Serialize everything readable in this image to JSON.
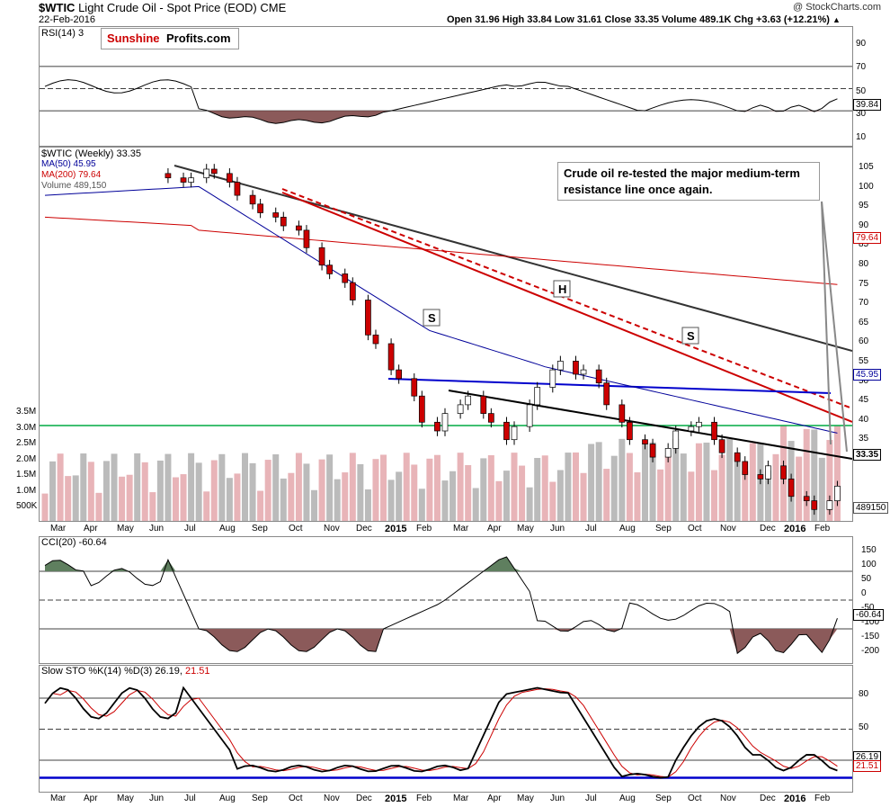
{
  "header": {
    "symbol": "$WTIC",
    "description": "Light Crude Oil - Spot Price (EOD)",
    "exchange": "CME",
    "date": "22-Feb-2016",
    "watermark": "@ StockCharts.com",
    "ohlc": "Open 31.96  High 33.84  Low 31.61  Close 33.35  Volume 489.1K  Chg +3.63 (+12.21%)",
    "chg_arrow": "▲"
  },
  "logo": {
    "part1": "Sunshine",
    "part2": "Profits.com",
    "color1": "#cc0000",
    "color2": "#000000"
  },
  "annotation": {
    "line1": "Crude oil re-tested the major medium-term",
    "line2": "resistance line once again."
  },
  "rsi": {
    "title": "RSI(14) 3",
    "value_label": "39.84",
    "axis_labels": [
      "90",
      "70",
      "50",
      "30",
      "10"
    ]
  },
  "price": {
    "legend": {
      "title": "$WTIC (Weekly) 33.35",
      "ma50": "MA(50) 45.95",
      "ma200": "MA(200) 79.64",
      "volume": "Volume 489,150"
    },
    "axis_labels": [
      "105",
      "100",
      "95",
      "90",
      "85",
      "80",
      "75",
      "70",
      "65",
      "60",
      "55",
      "50",
      "45",
      "40",
      "35",
      "30"
    ],
    "volume_axis_labels": [
      "3.5M",
      "3.0M",
      "2.5M",
      "2.0M",
      "1.5M",
      "1.0M",
      "500K"
    ],
    "last_label": "33.35",
    "ma50_label": "45.95",
    "ma200_label": "79.64",
    "volume_label": "489150",
    "pattern_labels": [
      "S",
      "H",
      "S"
    ],
    "colors": {
      "up": "#ffffff",
      "down": "#cc0000",
      "ma50": "#000099",
      "ma200": "#cc0000",
      "resistance": "#cc0000",
      "neckline": "#0000cc",
      "support": "#000000",
      "long_trend": "#333333",
      "level": "#00aa44"
    }
  },
  "cci": {
    "title": "CCI(20) -60.64",
    "value_label": "-60.64",
    "axis_labels": [
      "150",
      "100",
      "50",
      "0",
      "-50",
      "-100",
      "-150",
      "-200"
    ]
  },
  "sto": {
    "title": "Slow STO %K(14) %D(3) 26.19,",
    "d_value": "21.51",
    "k_label": "26.19",
    "d_label": "21.51",
    "axis_labels": [
      "80",
      "50",
      "20"
    ]
  },
  "months_top": [
    "Mar",
    "Apr",
    "May",
    "Jun",
    "Jul",
    "Aug",
    "Sep",
    "Oct",
    "Nov",
    "Dec",
    "2015",
    "Feb",
    "Mar",
    "Apr",
    "May",
    "Jun",
    "Jul",
    "Aug",
    "Sep",
    "Oct",
    "Nov",
    "Dec",
    "2016",
    "Feb"
  ],
  "months_bottom": [
    "Mar",
    "Apr",
    "May",
    "Jun",
    "Jul",
    "Aug",
    "Sep",
    "Oct",
    "Nov",
    "Dec",
    "2015",
    "Feb",
    "Mar",
    "Apr",
    "May",
    "Jun",
    "Jul",
    "Aug",
    "Sep",
    "Oct",
    "Nov",
    "Dec",
    "2016",
    "Feb"
  ],
  "chart_data": {
    "type": "line",
    "title": "$WTIC Light Crude Oil - Spot Price (EOD) CME",
    "series": [
      {
        "name": "$WTIC (Weekly)",
        "values": [
          104,
          103,
          104,
          106,
          105,
          103,
          100,
          98,
          96,
          95,
          93,
          92,
          88,
          84,
          82,
          80,
          76,
          68,
          66,
          60,
          58,
          54,
          48,
          46,
          50,
          52,
          54,
          50,
          48,
          44,
          47,
          52,
          56,
          60,
          62,
          59,
          60,
          57,
          52,
          48,
          44,
          43,
          40,
          42,
          46,
          47,
          48,
          44,
          41,
          39,
          36,
          35,
          38,
          35,
          31,
          30,
          28,
          30,
          33.35
        ]
      },
      {
        "name": "MA(50)",
        "values": [
          101,
          101,
          101,
          100,
          99,
          98,
          96,
          94,
          91,
          88,
          84,
          79,
          74,
          69,
          66,
          63,
          61,
          60,
          59,
          56,
          53,
          51,
          49,
          48,
          47,
          46,
          45.95
        ]
      },
      {
        "name": "MA(200)",
        "values": [
          94,
          95,
          95,
          95,
          94,
          93,
          92,
          91,
          90,
          89,
          88,
          87,
          86,
          85,
          84,
          83,
          82,
          81,
          80,
          79.64
        ]
      }
    ],
    "last": {
      "open": 31.96,
      "high": 33.84,
      "low": 31.61,
      "close": 33.35,
      "volume": 489100,
      "change": 3.63,
      "change_pct": 12.21
    },
    "ylim": [
      28,
      108
    ]
  }
}
